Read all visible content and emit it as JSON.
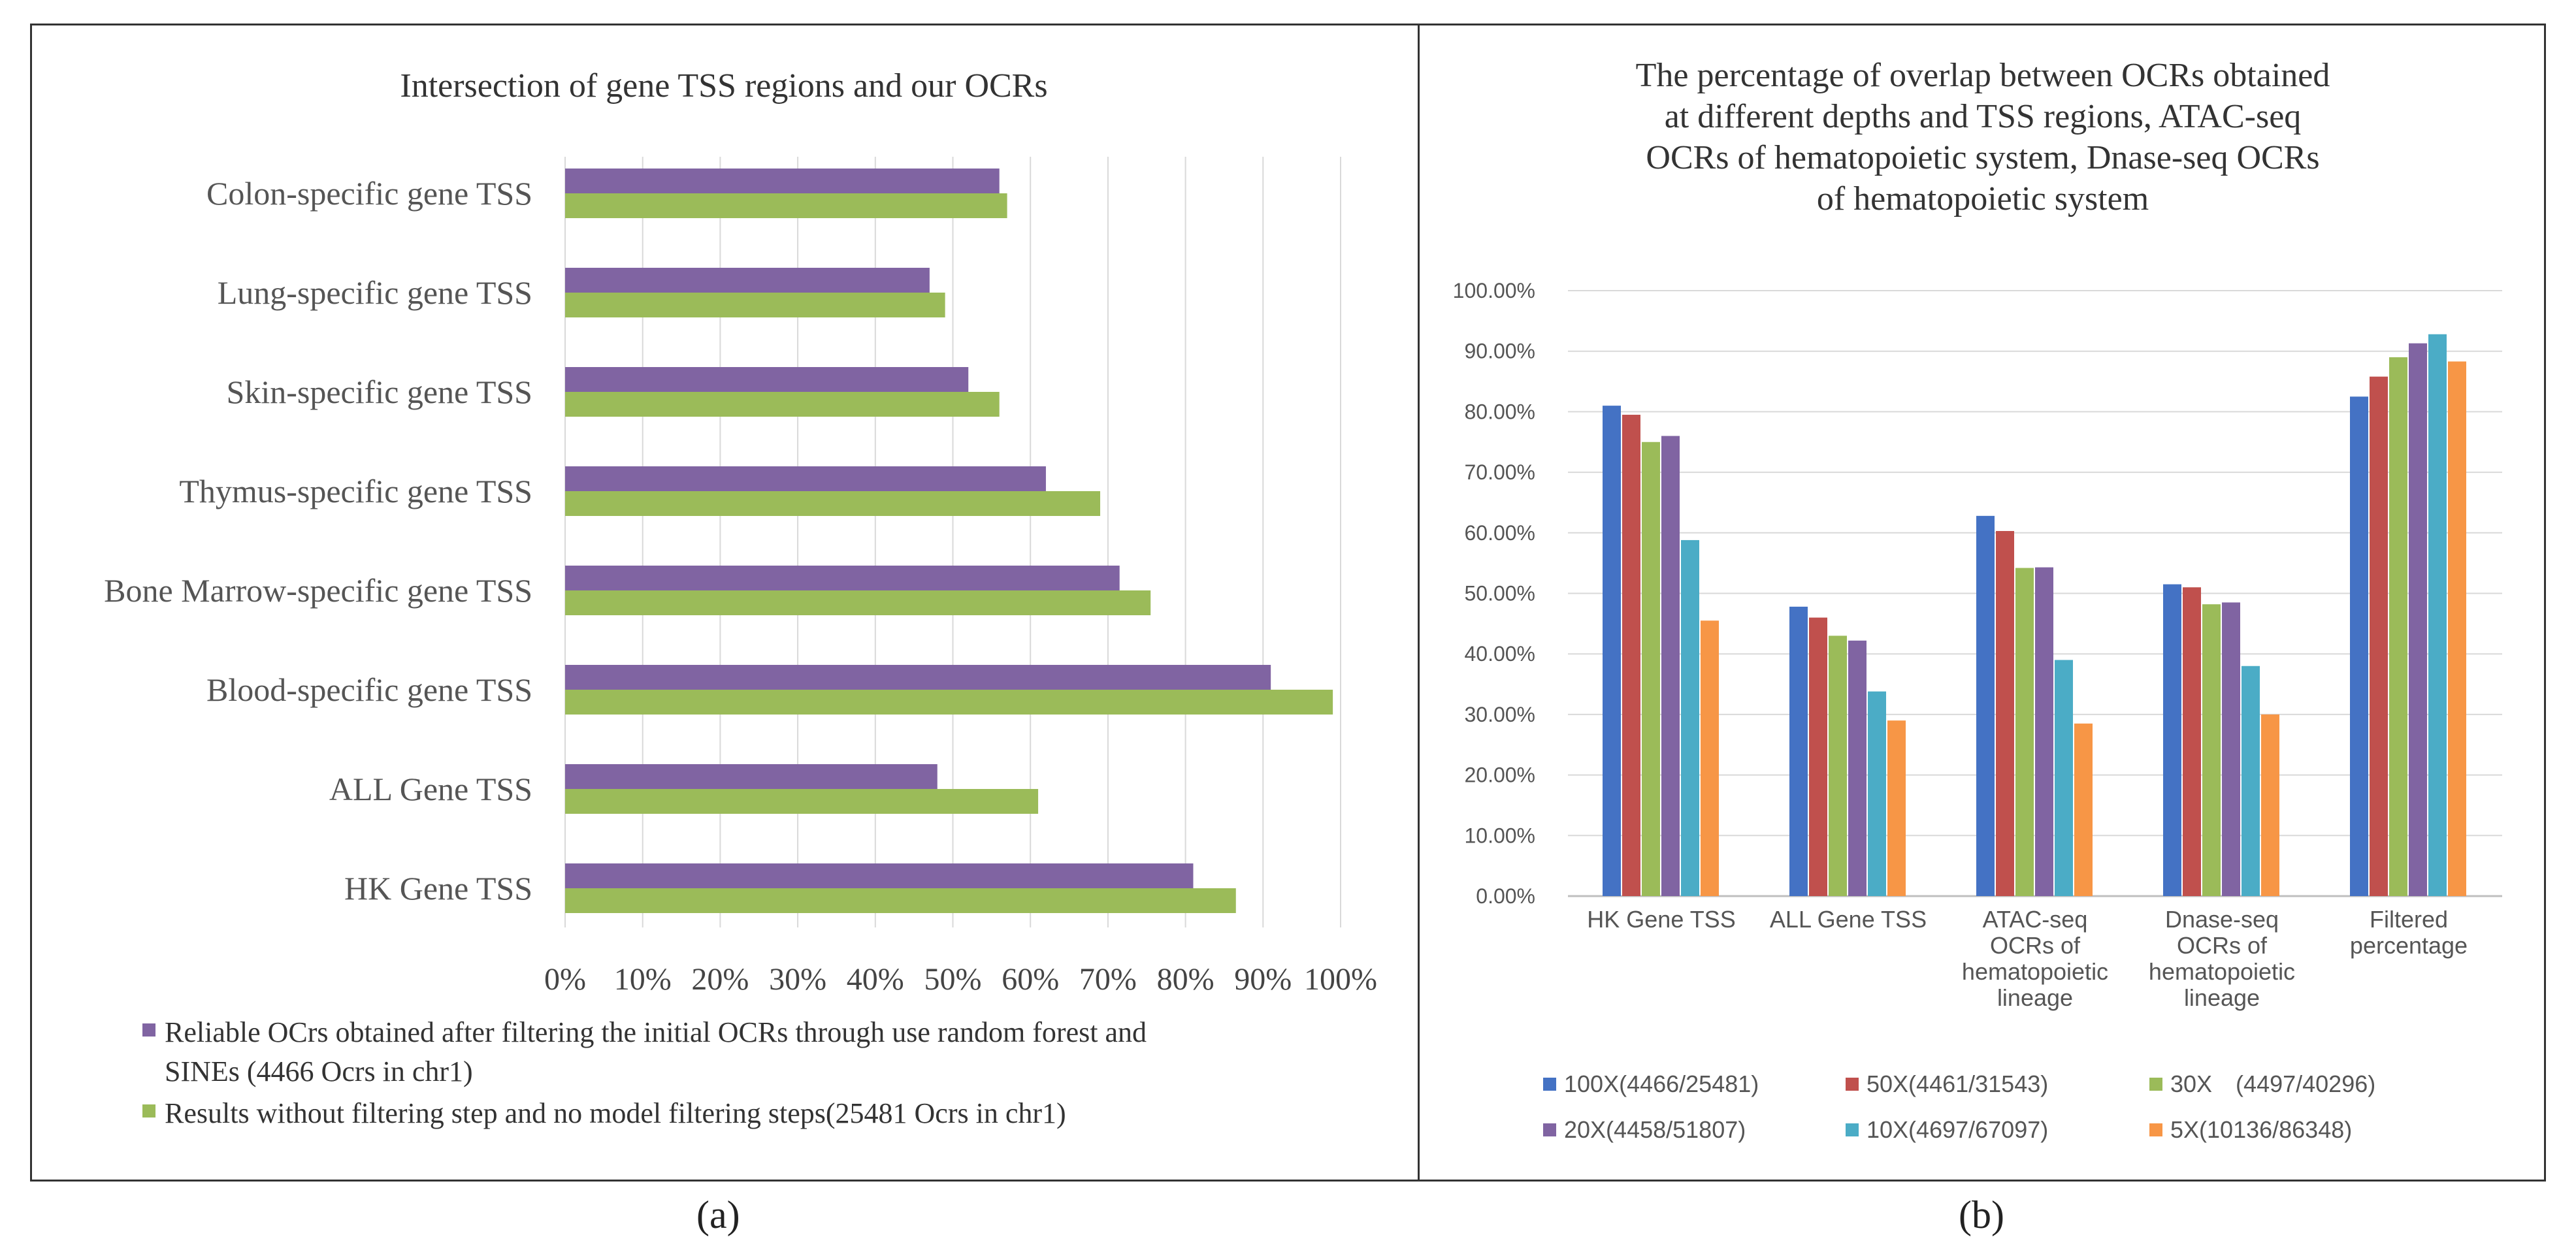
{
  "chart_data": [
    {
      "type": "bar",
      "orientation": "horizontal",
      "title": "Intersection of  gene TSS regions and our OCRs",
      "categories": [
        "Colon-specific gene TSS",
        "Lung-specific gene TSS",
        "Skin-specific gene TSS",
        "Thymus-specific gene TSS",
        "Bone Marrow-specific gene TSS",
        "Blood-specific gene TSS",
        "ALL Gene TSS",
        "HK Gene TSS"
      ],
      "series": [
        {
          "name_lines": [
            "Reliable OCrs obtained after filtering the initial OCRs through use random forest and",
            "SINEs (4466 Ocrs in chr1)"
          ],
          "color": "#8064A2",
          "values": [
            56,
            47,
            52,
            62,
            71.5,
            91,
            48,
            81
          ]
        },
        {
          "name_lines": [
            "Results without filtering step and no model filtering steps(25481 Ocrs in chr1)"
          ],
          "color": "#9BBB59",
          "values": [
            57,
            49,
            56,
            69,
            75.5,
            99,
            61,
            86.5
          ]
        }
      ],
      "xlim": [
        0,
        100
      ],
      "x_ticks": [
        "0%",
        "10%",
        "20%",
        "30%",
        "40%",
        "50%",
        "60%",
        "70%",
        "80%",
        "90%",
        "100%"
      ],
      "grid": true,
      "legend": "bottom",
      "panel_label": "(a)"
    },
    {
      "type": "bar",
      "orientation": "vertical",
      "title_lines": [
        "The percentage of overlap between OCRs obtained",
        "at different depths and TSS regions, ATAC-seq",
        "OCRs of hematopoietic system, Dnase-seq OCRs",
        "of hematopoietic system"
      ],
      "categories": [
        [
          "HK Gene TSS"
        ],
        [
          "ALL Gene TSS"
        ],
        [
          "ATAC-seq",
          "OCRs of",
          "hematopoietic",
          "lineage"
        ],
        [
          "Dnase-seq",
          "OCRs of",
          "hematopoietic",
          "lineage"
        ],
        [
          "Filtered",
          "percentage"
        ]
      ],
      "series": [
        {
          "name": "100X(4466/25481)",
          "color": "#4472C4",
          "values": [
            81,
            47.8,
            62.8,
            51.5,
            82.5
          ]
        },
        {
          "name": "50X(4461/31543)",
          "color": "#C0504D",
          "values": [
            79.5,
            46,
            60.3,
            51,
            85.8
          ]
        },
        {
          "name": "30X　(4497/40296)",
          "color": "#9BBB59",
          "values": [
            75,
            43,
            54.2,
            48.2,
            89
          ]
        },
        {
          "name": "20X(4458/51807)",
          "color": "#8064A2",
          "values": [
            76,
            42.2,
            54.3,
            48.5,
            91.3
          ]
        },
        {
          "name": "10X(4697/67097)",
          "color": "#4BACC6",
          "values": [
            58.8,
            33.8,
            39,
            38,
            92.8
          ]
        },
        {
          "name": "5X(10136/86348)",
          "color": "#F79646",
          "values": [
            45.5,
            29,
            28.5,
            30,
            88.3
          ]
        }
      ],
      "ylim": [
        0,
        100
      ],
      "y_ticks": [
        "0.00%",
        "10.00%",
        "20.00%",
        "30.00%",
        "40.00%",
        "50.00%",
        "60.00%",
        "70.00%",
        "80.00%",
        "90.00%",
        "100.00%"
      ],
      "grid": true,
      "legend": "bottom",
      "panel_label": "(b)"
    }
  ]
}
